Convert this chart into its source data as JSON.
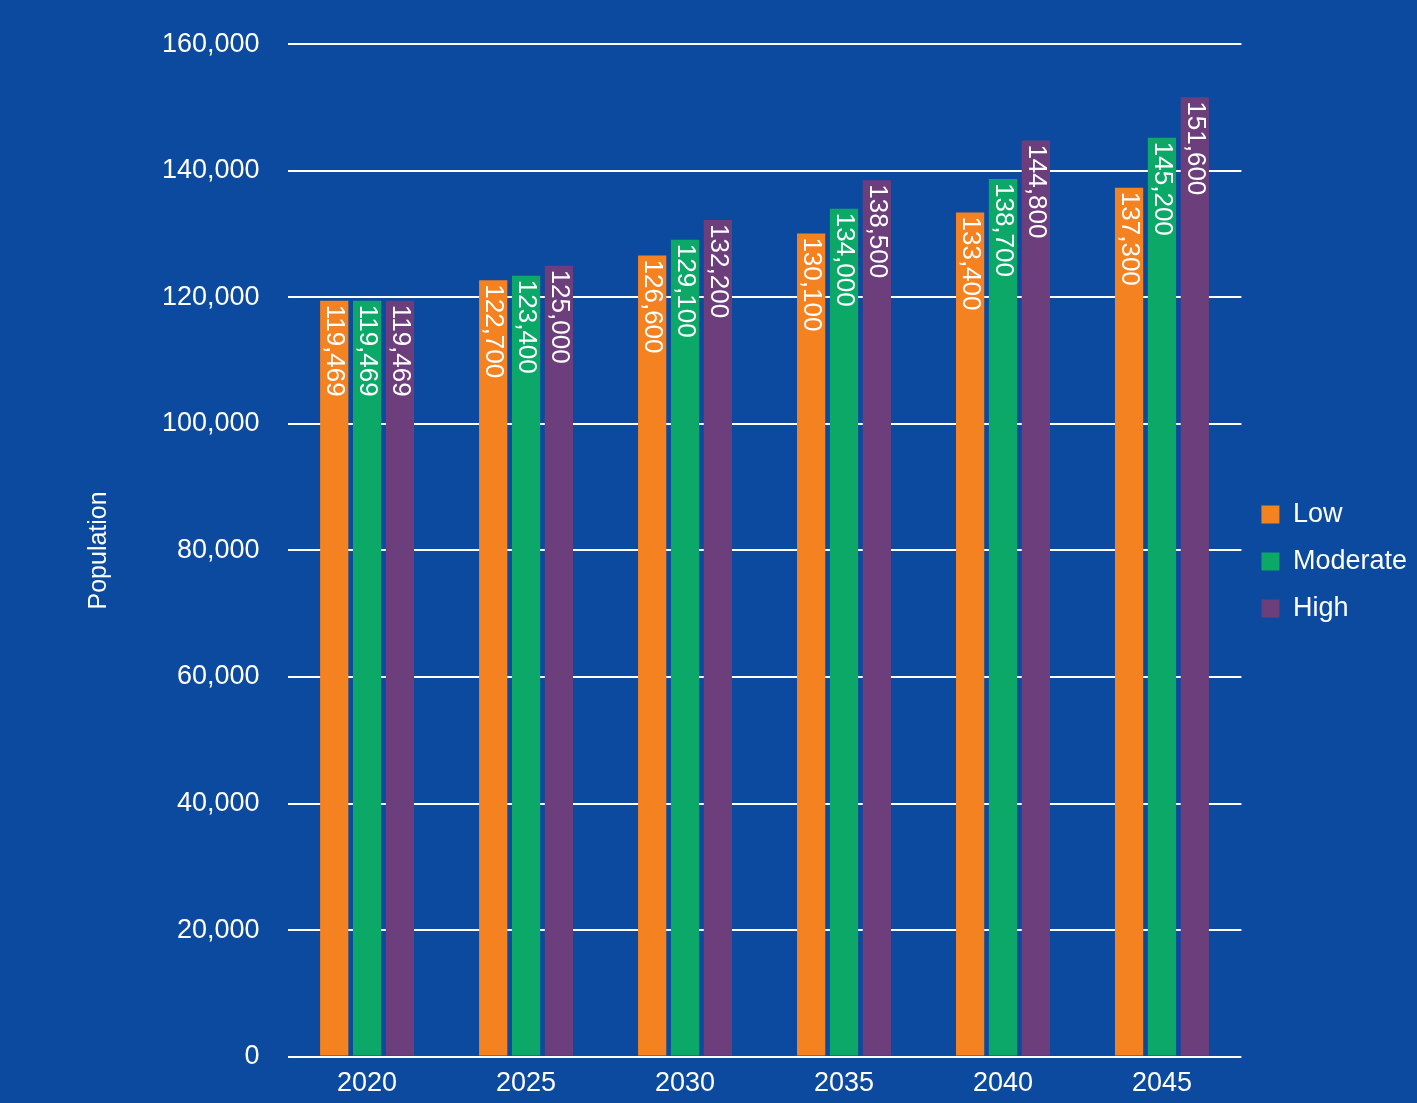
{
  "chart_data": {
    "type": "bar",
    "ylabel": "Population",
    "categories": [
      "2020",
      "2025",
      "2030",
      "2035",
      "2040",
      "2045"
    ],
    "series": [
      {
        "name": "Low",
        "color": "#f58220",
        "values": [
          119469,
          122700,
          126600,
          130100,
          133400,
          137300
        ],
        "value_labels": [
          "119,469",
          "122,700",
          "126,600",
          "130,100",
          "133,400",
          "137,300"
        ]
      },
      {
        "name": "Moderate",
        "color": "#0ca868",
        "values": [
          119469,
          123400,
          129100,
          134000,
          138700,
          145200
        ],
        "value_labels": [
          "119,469",
          "123,400",
          "129,100",
          "134,000",
          "138,700",
          "145,200"
        ]
      },
      {
        "name": "High",
        "color": "#6c3f7c",
        "values": [
          119469,
          125000,
          132200,
          138500,
          144800,
          151600
        ],
        "value_labels": [
          "119,469",
          "125,000",
          "132,200",
          "138,500",
          "144,800",
          "151,600"
        ]
      }
    ],
    "ylim": [
      0,
      160000
    ],
    "yticks": [
      0,
      {
        "value": 20000,
        "label": "20,000"
      },
      {
        "value": 40000,
        "label": "40,000"
      },
      {
        "value": 60000,
        "label": "60,000"
      },
      {
        "value": 80000,
        "label": "80,000"
      },
      {
        "value": 100000,
        "label": "100,000"
      },
      {
        "value": 120000,
        "label": "120,000"
      },
      {
        "value": 140000,
        "label": "140,000"
      },
      {
        "value": 160000,
        "label": "160,000"
      }
    ],
    "grid": "y",
    "legend": "right"
  }
}
